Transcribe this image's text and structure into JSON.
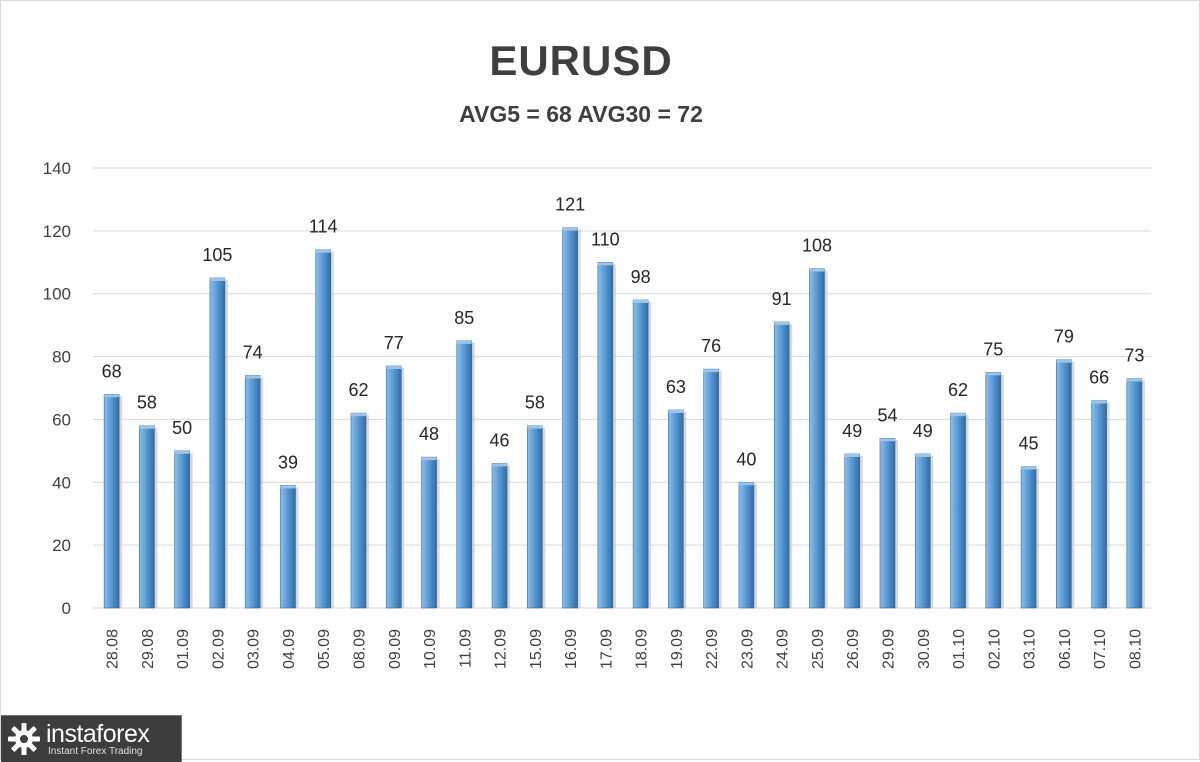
{
  "chart_data": {
    "type": "bar",
    "title": "EURUSD",
    "subtitle": "AVG5 = 68 AVG30 = 72",
    "categories": [
      "28.08",
      "29.08",
      "01.09",
      "02.09",
      "03.09",
      "04.09",
      "05.09",
      "08.09",
      "09.09",
      "10.09",
      "11.09",
      "12.09",
      "15.09",
      "16.09",
      "17.09",
      "18.09",
      "19.09",
      "22.09",
      "23.09",
      "24.09",
      "25.09",
      "26.09",
      "29.09",
      "30.09",
      "01.10",
      "02.10",
      "03.10",
      "06.10",
      "07.10",
      "08.10"
    ],
    "values": [
      68,
      58,
      50,
      105,
      74,
      39,
      114,
      62,
      77,
      48,
      85,
      46,
      58,
      121,
      110,
      98,
      63,
      76,
      40,
      91,
      108,
      49,
      54,
      49,
      62,
      75,
      45,
      79,
      66,
      73
    ],
    "ylim": [
      0,
      140
    ],
    "yticks": [
      0,
      20,
      40,
      60,
      80,
      100,
      120,
      140
    ],
    "grid": true,
    "data_labels": true,
    "colors": {
      "bar": "#5b9bd5",
      "bar_dark": "#2e75b6",
      "bar_light": "#9dc3e6",
      "grid": "#d9d9d9",
      "text": "#404040"
    }
  },
  "watermark": {
    "brand": "instaforex",
    "tagline": "Instant Forex Trading"
  }
}
